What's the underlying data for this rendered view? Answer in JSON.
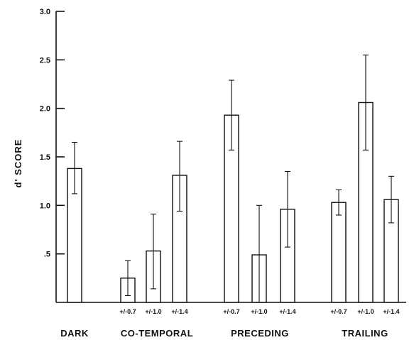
{
  "chart_data": {
    "type": "bar",
    "title": "",
    "xlabel": "",
    "ylabel": "d' SCORE",
    "ylim": [
      0,
      3.0
    ],
    "yticks": [
      {
        "value": 0.5,
        "label": ".5"
      },
      {
        "value": 1.0,
        "label": "1.0"
      },
      {
        "value": 1.5,
        "label": "1.5"
      },
      {
        "value": 2.0,
        "label": "2.0"
      },
      {
        "value": 2.5,
        "label": "2.5"
      },
      {
        "value": 3.0,
        "label": "3.0"
      }
    ],
    "grid": false,
    "legend": "none",
    "groups": [
      {
        "label": "DARK",
        "bars": [
          {
            "label": "",
            "value": 1.38,
            "err_low": 1.12,
            "err_high": 1.65
          }
        ]
      },
      {
        "label": "CO-TEMPORAL",
        "bars": [
          {
            "label": "+/-0.7",
            "value": 0.25,
            "err_low": 0.07,
            "err_high": 0.43
          },
          {
            "label": "+/-1.0",
            "value": 0.53,
            "err_low": 0.14,
            "err_high": 0.91
          },
          {
            "label": "+/-1.4",
            "value": 1.31,
            "err_low": 0.94,
            "err_high": 1.66
          }
        ]
      },
      {
        "label": "PRECEDING",
        "bars": [
          {
            "label": "+/-0.7",
            "value": 1.93,
            "err_low": 1.57,
            "err_high": 2.29
          },
          {
            "label": "+/-1.0",
            "value": 0.49,
            "err_low": 0.0,
            "err_high": 1.0
          },
          {
            "label": "+/-1.4",
            "value": 0.96,
            "err_low": 0.57,
            "err_high": 1.35
          }
        ]
      },
      {
        "label": "TRAILING",
        "bars": [
          {
            "label": "+/-0.7",
            "value": 1.03,
            "err_low": 0.9,
            "err_high": 1.16
          },
          {
            "label": "+/-1.0",
            "value": 2.06,
            "err_low": 1.57,
            "err_high": 2.55
          },
          {
            "label": "+/-1.4",
            "value": 1.06,
            "err_low": 0.82,
            "err_high": 1.3
          }
        ]
      }
    ]
  }
}
